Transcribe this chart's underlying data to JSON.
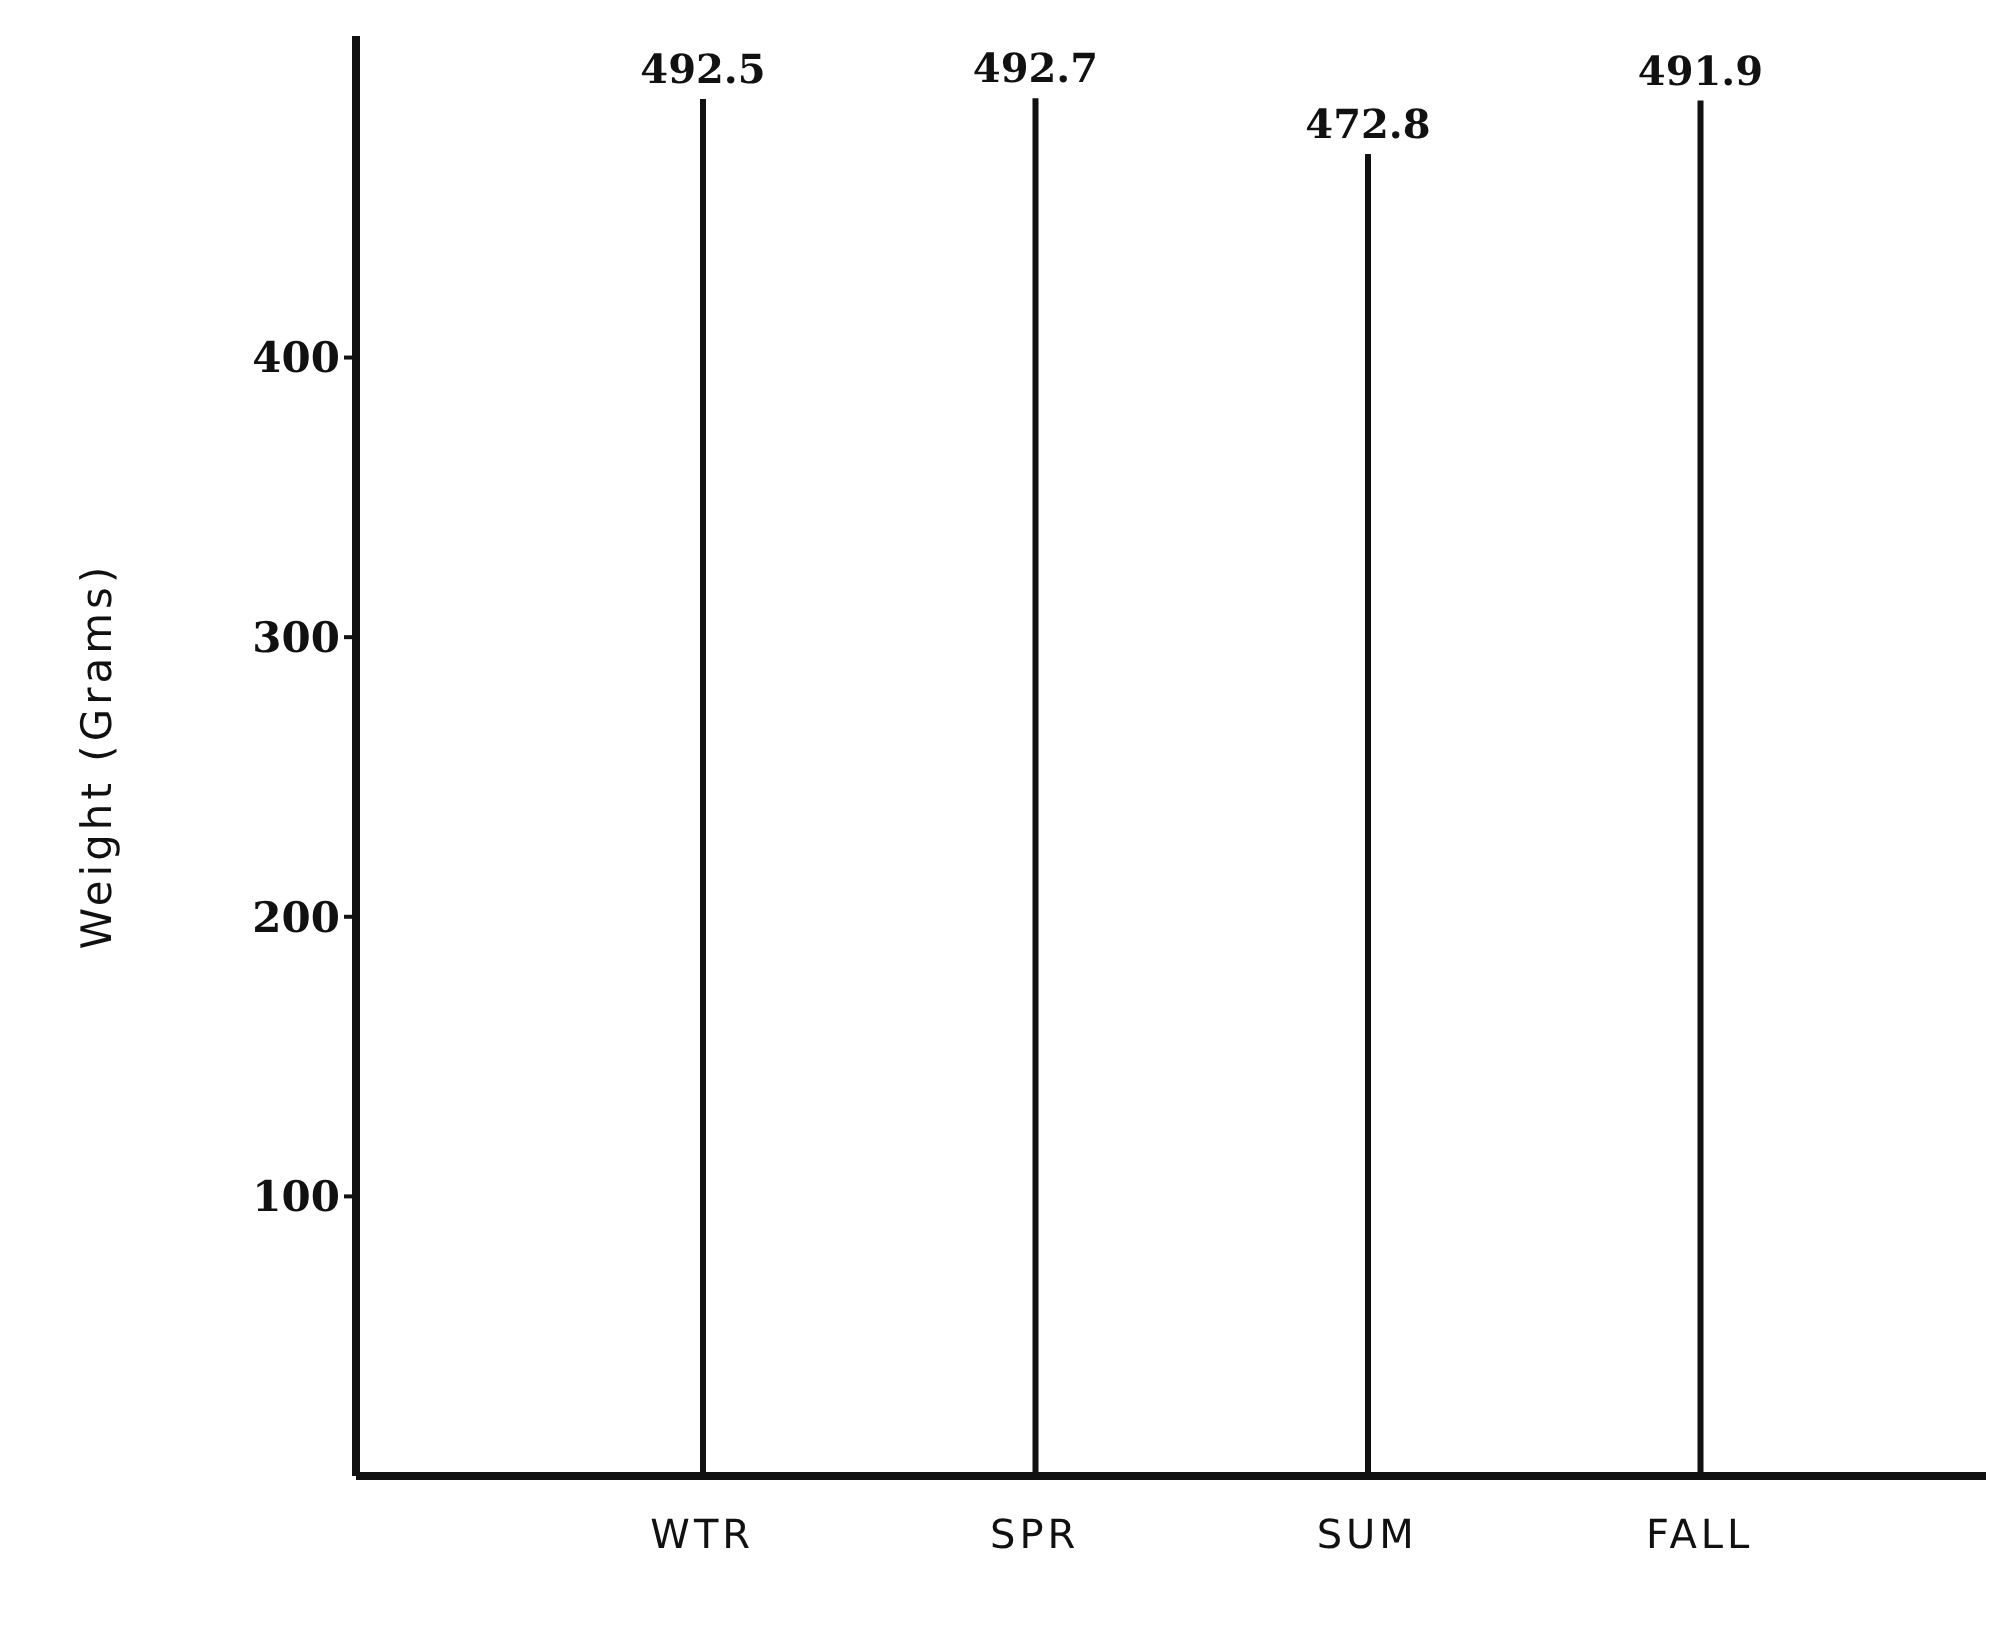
{
  "chart_data": {
    "type": "bar",
    "ylabel": "Weight (Grams)",
    "categories": [
      "WTR",
      "SPR",
      "SUM",
      "FALL"
    ],
    "values": [
      492.5,
      492.7,
      472.8,
      491.9
    ],
    "color": "#111111",
    "ylim": [
      0,
      515
    ],
    "yticks": [
      100,
      200,
      300,
      400
    ],
    "grid": false,
    "data_labels": true
  }
}
